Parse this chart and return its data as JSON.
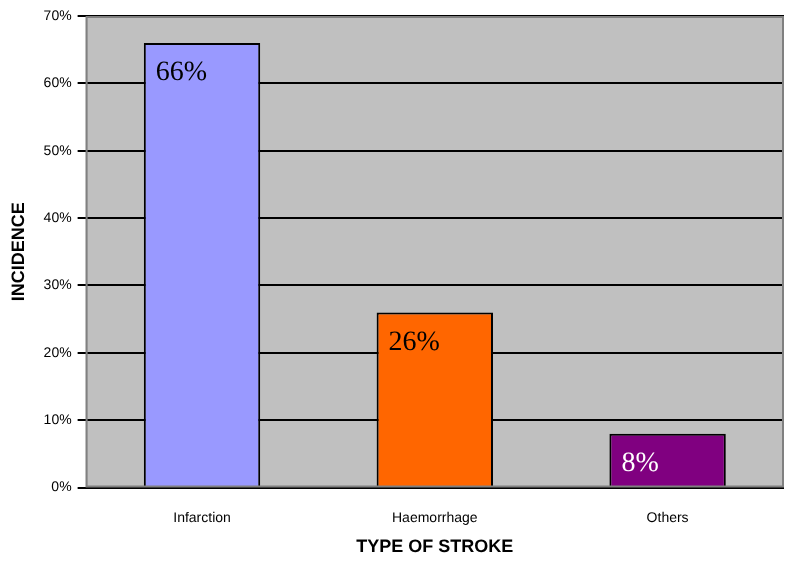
{
  "chart_data": {
    "type": "bar",
    "xlabel": "TYPE OF STROKE",
    "ylabel": "INCIDENCE",
    "categories": [
      "Infarction",
      "Haemorrhage",
      "Others"
    ],
    "values": [
      66,
      26,
      8
    ],
    "colors": [
      "#9999ff",
      "#ff6600",
      "#800080"
    ],
    "value_labels": [
      "66%",
      "26%",
      "8%"
    ],
    "ylim": [
      0,
      70
    ],
    "yticks": [
      {
        "value": 0,
        "label": "0%"
      },
      {
        "value": 10,
        "label": "10%"
      },
      {
        "value": 20,
        "label": "20%"
      },
      {
        "value": 30,
        "label": "30%"
      },
      {
        "value": 40,
        "label": "40%"
      },
      {
        "value": 50,
        "label": "50%"
      },
      {
        "value": 60,
        "label": "60%"
      },
      {
        "value": 70,
        "label": "70%"
      }
    ],
    "grid": "y",
    "legend": false
  }
}
